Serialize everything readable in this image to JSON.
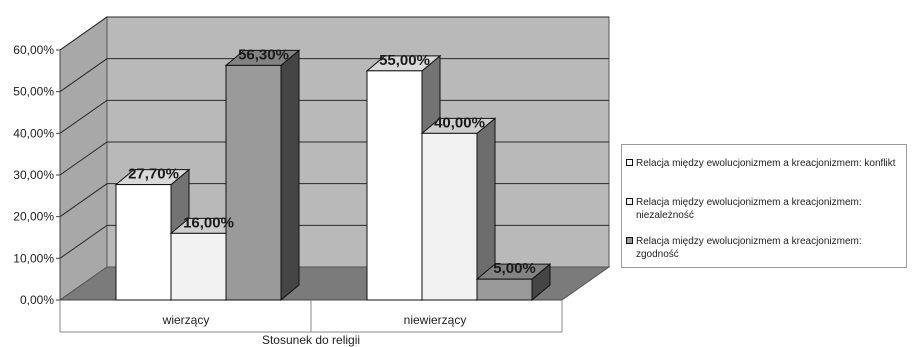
{
  "chart_data": {
    "type": "bar",
    "title": "",
    "xlabel": "Stosunek do religii",
    "ylabel": "",
    "categories": [
      "wierzący",
      "niewierzący"
    ],
    "ylim": [
      0,
      60
    ],
    "yticks": [
      "0,00%",
      "10,00%",
      "20,00%",
      "30,00%",
      "40,00%",
      "50,00%",
      "60,00%"
    ],
    "grid": true,
    "legend_position": "right",
    "three_d": true,
    "series": [
      {
        "name": "Relacja między ewolucjonizmem a kreacjonizmem: konflikt",
        "values": [
          27.7,
          55.0
        ],
        "labels": [
          "27,70%",
          "55,00%"
        ],
        "color": "#ffffff"
      },
      {
        "name": "Relacja między ewolucjonizmem a kreacjonizmem: niezależność",
        "values": [
          16.0,
          40.0
        ],
        "labels": [
          "16,00%",
          "40,00%"
        ],
        "color": "#f2f2f2"
      },
      {
        "name": "Relacja między ewolucjonizmem a kreacjonizmem: zgodność",
        "values": [
          56.3,
          5.0
        ],
        "labels": [
          "56,30%",
          "5,00%"
        ],
        "color": "#9a9a9a"
      }
    ]
  },
  "colors": {
    "back_wall": "#b9b9b9",
    "side_wall": "#a8a8a8",
    "floor": "#7b7b7b",
    "gridline": "#2a2a2a"
  }
}
